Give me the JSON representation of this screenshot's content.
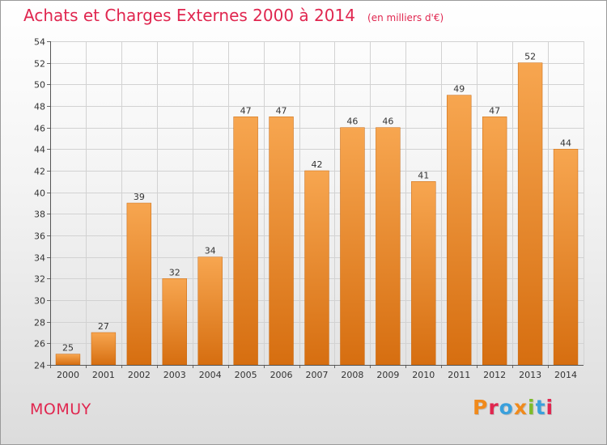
{
  "header": {
    "title": "Achats et Charges Externes 2000 à 2014",
    "unit": "(en milliers d'€)"
  },
  "footer": {
    "commune": "MOMUY",
    "logo": "Proxiti",
    "logo_colors": [
      "#f08a1c",
      "#e0264f",
      "#3aa0dc",
      "#f08a1c",
      "#7dbb2a",
      "#3aa0dc",
      "#e0264f"
    ]
  },
  "chart_data": {
    "type": "bar",
    "title": "Achats et Charges Externes 2000 à 2014",
    "subtitle": "(en milliers d'€)",
    "categories": [
      "2000",
      "2001",
      "2002",
      "2003",
      "2004",
      "2005",
      "2006",
      "2007",
      "2008",
      "2009",
      "2010",
      "2011",
      "2012",
      "2013",
      "2014"
    ],
    "values": [
      25,
      27,
      39,
      32,
      34,
      47,
      47,
      42,
      46,
      46,
      41,
      49,
      47,
      52,
      44
    ],
    "xlabel": "",
    "ylabel": "",
    "ylim": [
      24,
      54
    ],
    "yticks": [
      24,
      26,
      28,
      30,
      32,
      34,
      36,
      38,
      40,
      42,
      44,
      46,
      48,
      50,
      52,
      54
    ],
    "grid": true,
    "bar_color_top": "#f7a650",
    "bar_color_bottom": "#d66e10"
  }
}
